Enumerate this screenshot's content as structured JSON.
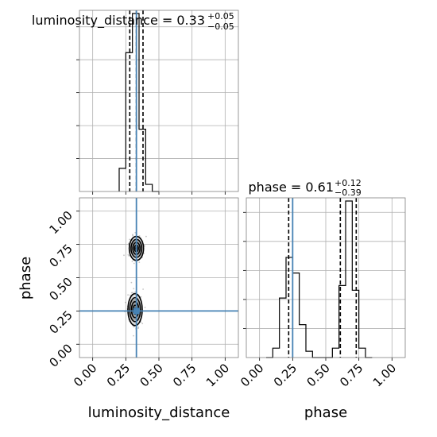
{
  "chart_data": {
    "type": "corner",
    "parameters": [
      "luminosity_distance",
      "phase"
    ],
    "truths": {
      "luminosity_distance": 0.33,
      "phase": 0.25
    },
    "colors": {
      "truth": "#4682b4",
      "hist": "#000000",
      "grid": "#b0b0b0"
    },
    "grid": true,
    "xticks": [
      "0.00",
      "0.25",
      "0.50",
      "0.75",
      "1.00"
    ],
    "yticks": [
      "0.00",
      "0.25",
      "0.50",
      "0.75",
      "1.00"
    ],
    "xlim": [
      -0.1,
      1.1
    ],
    "ylim": [
      -0.1,
      1.1
    ],
    "xlabel_left": "luminosity_distance",
    "xlabel_right": "phase",
    "ylabel": "phase",
    "hist_luminosity_distance": {
      "title_main": "luminosity_distance = 0.33",
      "title_sup": "+0.05",
      "title_sub": "−0.05",
      "quantiles": [
        0.28,
        0.33,
        0.38
      ],
      "bin_edges": [
        0.2,
        0.25,
        0.3,
        0.35,
        0.4,
        0.45,
        0.5
      ],
      "counts": [
        0.13,
        0.78,
        1.0,
        0.35,
        0.04,
        0.0
      ]
    },
    "hist_phase": {
      "title_main": "phase = 0.61",
      "title_sup": "+0.12",
      "title_sub": "−0.39",
      "quantiles": [
        0.22,
        0.61,
        0.73
      ],
      "bin_edges": [
        0.05,
        0.1,
        0.15,
        0.2,
        0.25,
        0.3,
        0.35,
        0.4,
        0.45,
        0.5,
        0.55,
        0.6,
        0.65,
        0.7,
        0.75,
        0.8,
        0.85
      ],
      "counts": [
        0.0,
        0.06,
        0.38,
        0.64,
        0.54,
        0.21,
        0.04,
        0.0,
        0.0,
        0.0,
        0.06,
        0.46,
        1.0,
        0.43,
        0.06,
        0.0
      ]
    },
    "scatter_2d": {
      "modes": [
        {
          "x": 0.33,
          "y": 0.72,
          "sx": 0.027,
          "sy": 0.045
        },
        {
          "x": 0.32,
          "y": 0.26,
          "sx": 0.027,
          "sy": 0.06
        }
      ]
    }
  }
}
